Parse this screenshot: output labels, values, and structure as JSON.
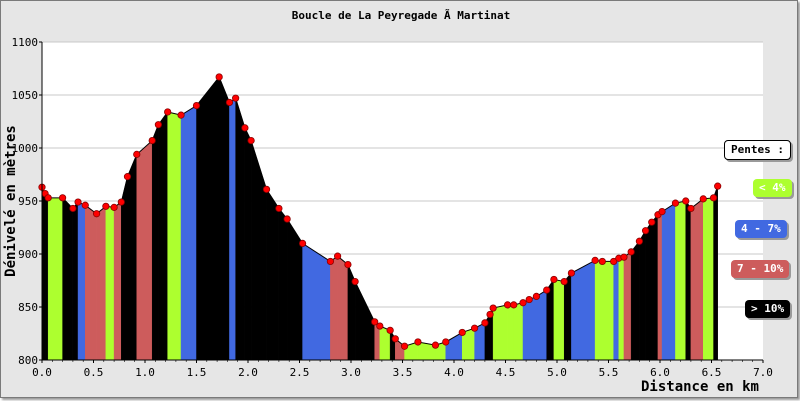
{
  "chart_data": {
    "type": "area",
    "title": "Boucle de La Peyregade Ã  Martinat",
    "xlabel": "Distance en km",
    "ylabel": "Dénivelé en mètres",
    "xlim": [
      0,
      7
    ],
    "ylim": [
      800,
      1100
    ],
    "xticks": [
      "0.0",
      "0.5",
      "1.0",
      "1.5",
      "2.0",
      "2.5",
      "3.0",
      "3.5",
      "4.0",
      "4.5",
      "5.0",
      "5.5",
      "6.0",
      "6.5",
      "7.0"
    ],
    "yticks": [
      "800",
      "850",
      "900",
      "950",
      "1000",
      "1050",
      "1100"
    ],
    "grid": true,
    "legend_position": "right",
    "legend": {
      "title": "Pentes :",
      "entries": [
        {
          "label": "< 4%",
          "color": "#adff2f",
          "text_color": "#ffffff"
        },
        {
          "label": "4 - 7%",
          "color": "#4169e1",
          "text_color": "#ffffff"
        },
        {
          "label": "7 - 10%",
          "color": "#cd5c5c",
          "text_color": "#ffffff"
        },
        {
          "label": "> 10%",
          "color": "#000000",
          "text_color": "#ffffff"
        }
      ]
    },
    "x": [
      0.0,
      0.03,
      0.06,
      0.2,
      0.3,
      0.35,
      0.42,
      0.53,
      0.62,
      0.7,
      0.77,
      0.83,
      0.92,
      1.07,
      1.13,
      1.22,
      1.35,
      1.5,
      1.72,
      1.82,
      1.88,
      1.97,
      2.03,
      2.18,
      2.3,
      2.38,
      2.53,
      2.8,
      2.87,
      2.97,
      3.04,
      3.23,
      3.28,
      3.38,
      3.43,
      3.52,
      3.65,
      3.82,
      3.92,
      4.08,
      4.2,
      4.3,
      4.35,
      4.38,
      4.52,
      4.58,
      4.67,
      4.73,
      4.8,
      4.9,
      4.97,
      5.07,
      5.14,
      5.37,
      5.44,
      5.55,
      5.6,
      5.65,
      5.72,
      5.8,
      5.86,
      5.92,
      5.98,
      6.02,
      6.15,
      6.25,
      6.3,
      6.42,
      6.52,
      6.56
    ],
    "y": [
      963,
      957,
      953,
      953,
      943,
      949,
      946,
      938,
      945,
      944,
      949,
      973,
      994,
      1007,
      1022,
      1034,
      1031,
      1040,
      1067,
      1043,
      1047,
      1019,
      1007,
      961,
      943,
      933,
      910,
      893,
      898,
      890,
      874,
      836,
      832,
      828,
      820,
      813,
      817,
      814,
      817,
      826,
      830,
      835,
      843,
      849,
      852,
      852,
      854,
      857,
      860,
      866,
      876,
      874,
      882,
      894,
      893,
      893,
      896,
      897,
      902,
      912,
      922,
      930,
      937,
      940,
      948,
      950,
      943,
      952,
      953,
      964
    ]
  }
}
